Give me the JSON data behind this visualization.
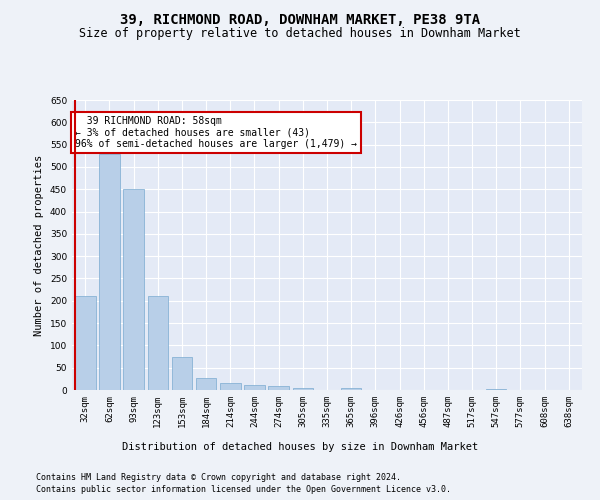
{
  "title": "39, RICHMOND ROAD, DOWNHAM MARKET, PE38 9TA",
  "subtitle": "Size of property relative to detached houses in Downham Market",
  "xlabel": "Distribution of detached houses by size in Downham Market",
  "ylabel": "Number of detached properties",
  "footnote1": "Contains HM Land Registry data © Crown copyright and database right 2024.",
  "footnote2": "Contains public sector information licensed under the Open Government Licence v3.0.",
  "categories": [
    "32sqm",
    "62sqm",
    "93sqm",
    "123sqm",
    "153sqm",
    "184sqm",
    "214sqm",
    "244sqm",
    "274sqm",
    "305sqm",
    "335sqm",
    "365sqm",
    "396sqm",
    "426sqm",
    "456sqm",
    "487sqm",
    "517sqm",
    "547sqm",
    "577sqm",
    "608sqm",
    "638sqm"
  ],
  "values": [
    210,
    530,
    450,
    210,
    75,
    27,
    15,
    11,
    8,
    5,
    0,
    4,
    0,
    0,
    0,
    1,
    0,
    3,
    0,
    1,
    0
  ],
  "bar_color": "#b8cfe8",
  "bar_edge_color": "#7aaad0",
  "highlight_line_color": "#cc0000",
  "annotation_text": "  39 RICHMOND ROAD: 58sqm\n← 3% of detached houses are smaller (43)\n96% of semi-detached houses are larger (1,479) →",
  "annotation_box_color": "#cc0000",
  "ylim": [
    0,
    650
  ],
  "yticks": [
    0,
    50,
    100,
    150,
    200,
    250,
    300,
    350,
    400,
    450,
    500,
    550,
    600,
    650
  ],
  "background_color": "#eef2f8",
  "plot_bg_color": "#e4eaf6",
  "grid_color": "#ffffff",
  "title_fontsize": 10,
  "subtitle_fontsize": 8.5,
  "axis_label_fontsize": 7.5,
  "tick_fontsize": 6.5,
  "footnote_fontsize": 6
}
